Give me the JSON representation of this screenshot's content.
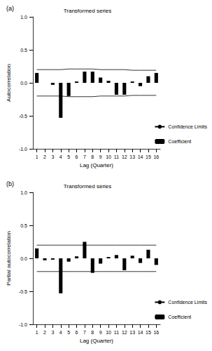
{
  "chart_data": [
    {
      "type": "bar",
      "panel": "(a)",
      "title": "Transformed series",
      "x_label": "Lag (Quarter)",
      "y_label": "Autocorrelation",
      "categories": [
        1,
        2,
        3,
        4,
        5,
        6,
        7,
        8,
        9,
        10,
        11,
        12,
        13,
        14,
        15,
        16
      ],
      "series": [
        {
          "name": "Confidence Limits",
          "type": "line",
          "color": "#000000",
          "upper": [
            0.2,
            0.2,
            0.2,
            0.2,
            0.21,
            0.21,
            0.21,
            0.21,
            0.2,
            0.2,
            0.2,
            0.2,
            0.19,
            0.19,
            0.19,
            0.19
          ],
          "lower": [
            -0.2,
            -0.2,
            -0.2,
            -0.2,
            -0.21,
            -0.21,
            -0.21,
            -0.21,
            -0.2,
            -0.2,
            -0.2,
            -0.2,
            -0.19,
            -0.19,
            -0.19,
            -0.19
          ]
        },
        {
          "name": "Coefficient",
          "type": "bar",
          "color": "#000000",
          "values": [
            0.15,
            0.0,
            -0.03,
            -0.53,
            -0.2,
            0.02,
            0.17,
            0.17,
            0.08,
            0.03,
            -0.18,
            -0.18,
            0.02,
            -0.05,
            0.1,
            0.15
          ]
        }
      ],
      "ylim": [
        -1,
        1
      ],
      "yticks": [
        {
          "value": -1,
          "label": "-1.0"
        },
        {
          "value": -0.5,
          "label": "-0.5"
        },
        {
          "value": 0,
          "label": "0.0"
        },
        {
          "value": 0.5,
          "label": "0.5"
        },
        {
          "value": 1,
          "label": "1.0"
        }
      ],
      "grid": false,
      "legend": "right"
    },
    {
      "type": "bar",
      "panel": "(b)",
      "title": "Transformed series",
      "x_label": "Lag (Quarter)",
      "y_label": "Partial autocorrelation",
      "categories": [
        1,
        2,
        3,
        4,
        5,
        6,
        7,
        8,
        9,
        10,
        11,
        12,
        13,
        14,
        15,
        16
      ],
      "series": [
        {
          "name": "Confidence Limits",
          "type": "line",
          "color": "#000000",
          "upper": [
            0.2,
            0.2,
            0.2,
            0.2,
            0.2,
            0.2,
            0.2,
            0.2,
            0.2,
            0.2,
            0.2,
            0.2,
            0.2,
            0.2,
            0.2,
            0.2
          ],
          "lower": [
            -0.2,
            -0.2,
            -0.2,
            -0.2,
            -0.2,
            -0.2,
            -0.2,
            -0.2,
            -0.2,
            -0.2,
            -0.2,
            -0.2,
            -0.2,
            -0.2,
            -0.2,
            -0.2
          ]
        },
        {
          "name": "Coefficient",
          "type": "bar",
          "color": "#000000",
          "values": [
            0.15,
            -0.03,
            -0.02,
            -0.53,
            -0.05,
            0.03,
            0.25,
            -0.22,
            -0.08,
            0.02,
            0.05,
            -0.18,
            0.04,
            -0.07,
            0.13,
            -0.1
          ]
        }
      ],
      "ylim": [
        -1,
        1
      ],
      "yticks": [
        {
          "value": -1,
          "label": "-1.0"
        },
        {
          "value": -0.5,
          "label": "-0.5"
        },
        {
          "value": 0,
          "label": "0.0"
        },
        {
          "value": 0.5,
          "label": "0.5"
        },
        {
          "value": 1,
          "label": "1.0"
        }
      ],
      "grid": false,
      "legend": "right"
    }
  ]
}
